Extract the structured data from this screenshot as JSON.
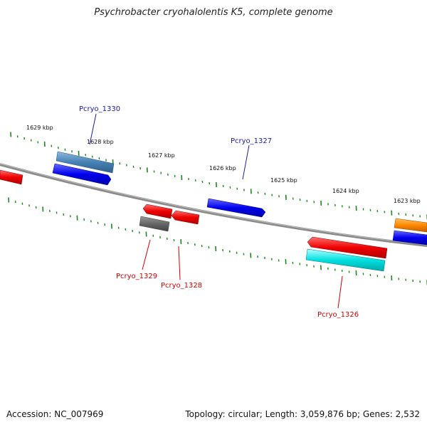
{
  "title": "Psychrobacter cryohalolentis K5, complete genome",
  "footer": {
    "accession": "Accession: NC_007969",
    "summary": "Topology: circular; Length: 3,059,876 bp; Genes: 2,532"
  },
  "scale": {
    "tick_labels": [
      "1629 kbp",
      "1628 kbp",
      "1627 kbp",
      "1626 kbp",
      "1625 kbp",
      "1624 kbp",
      "1623 kbp"
    ]
  },
  "genes": {
    "labeled": [
      {
        "name": "Pcryo_1330",
        "strand": "forward",
        "color": "#1a1aaa"
      },
      {
        "name": "Pcryo_1327",
        "strand": "forward",
        "color": "#1a1aaa"
      },
      {
        "name": "Pcryo_1329",
        "strand": "reverse",
        "color": "#d40000"
      },
      {
        "name": "Pcryo_1328",
        "strand": "reverse",
        "color": "#d40000"
      },
      {
        "name": "Pcryo_1326",
        "strand": "reverse",
        "color": "#d40000"
      }
    ],
    "feature_colors": {
      "cds_forward": "#0000ee",
      "cds_reverse": "#ee0000",
      "rna": "#00dddd",
      "pseudo": "#666666",
      "other": "#ff8800",
      "gene_steel": "#4682b4"
    }
  }
}
